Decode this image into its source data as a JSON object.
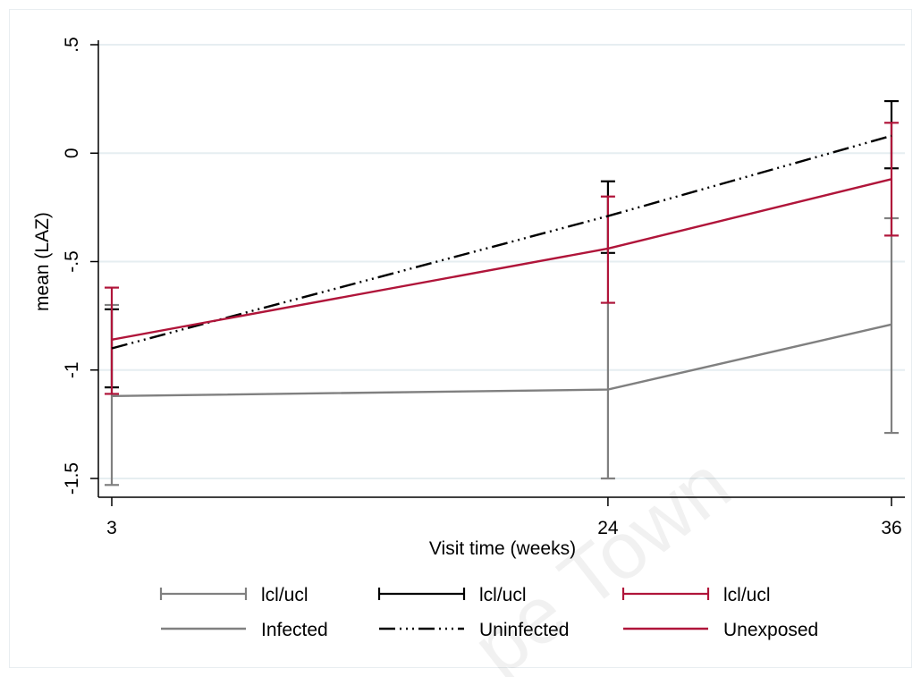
{
  "chart_data": {
    "type": "line",
    "title": "",
    "xlabel": "Visit time (weeks)",
    "ylabel": "mean (LAZ)",
    "x": [
      3,
      24,
      36
    ],
    "x_tick_labels": [
      "3",
      "24",
      "36"
    ],
    "y_ticks": [
      -1.5,
      -1,
      -0.5,
      0,
      0.5
    ],
    "y_tick_labels": [
      "-1.5",
      "-1",
      "-.5",
      "0",
      ".5"
    ],
    "ylim": [
      -1.6,
      0.55
    ],
    "xlim": [
      3,
      36
    ],
    "grid": true,
    "legend_position": "bottom",
    "series": [
      {
        "name": "Infected",
        "ci_label": "lcl/ucl",
        "color": "#808080",
        "line_style": "solid",
        "mean": [
          -1.12,
          -1.09,
          -0.79
        ],
        "lcl": [
          -1.53,
          -1.5,
          -1.29
        ],
        "ucl": [
          -0.7,
          -0.69,
          -0.3
        ]
      },
      {
        "name": "Uninfected",
        "ci_label": "lcl/ucl",
        "color": "#000000",
        "line_style": "long-dash-triple-dot",
        "mean": [
          -0.9,
          -0.29,
          0.08
        ],
        "lcl": [
          -1.08,
          -0.46,
          -0.07
        ],
        "ucl": [
          -0.72,
          -0.13,
          0.24
        ]
      },
      {
        "name": "Unexposed",
        "ci_label": "lcl/ucl",
        "color": "#b0153a",
        "line_style": "solid",
        "mean": [
          -0.86,
          -0.44,
          -0.12
        ],
        "lcl": [
          -1.11,
          -0.69,
          -0.38
        ],
        "ucl": [
          -0.62,
          -0.2,
          0.14
        ]
      }
    ]
  },
  "watermark": "pe Town"
}
